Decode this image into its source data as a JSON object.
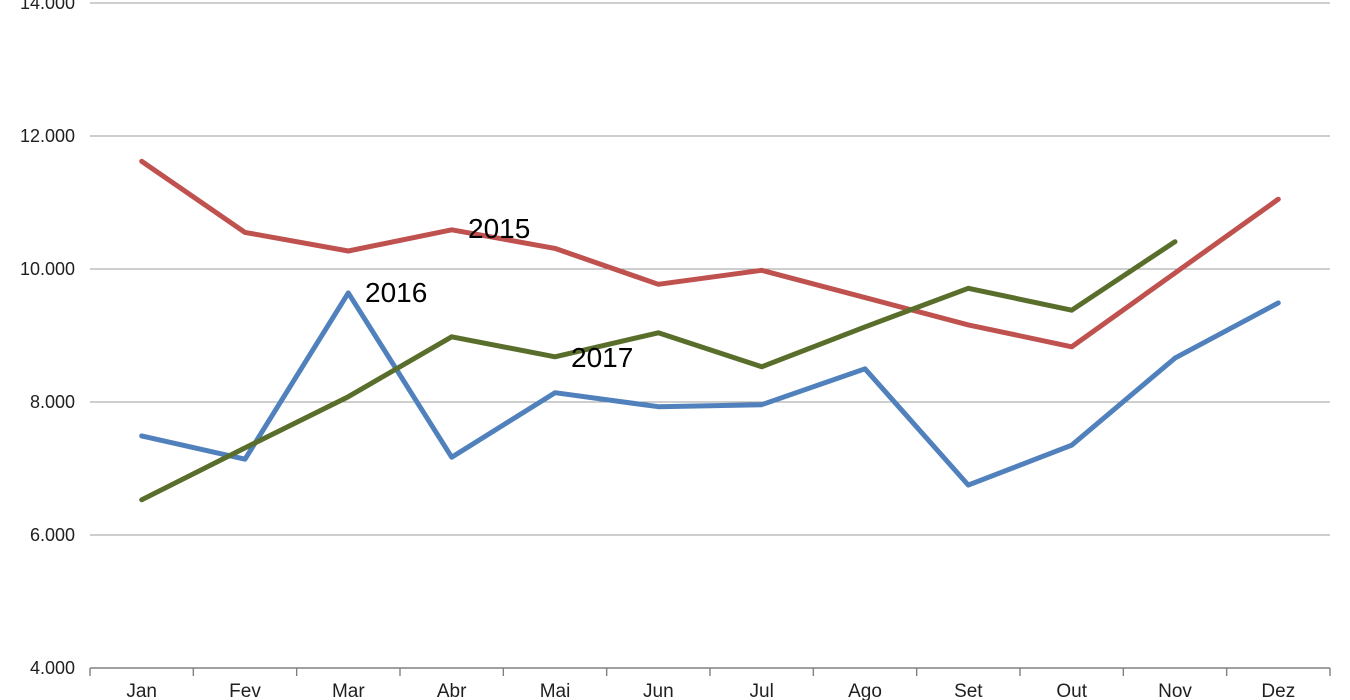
{
  "chart_data": {
    "type": "line",
    "title": "",
    "xlabel": "",
    "ylabel": "",
    "categories": [
      "Jan",
      "Fev",
      "Mar",
      "Abr",
      "Mai",
      "Jun",
      "Jul",
      "Ago",
      "Set",
      "Out",
      "Nov",
      "Dez"
    ],
    "series": [
      {
        "name": "2015",
        "color": "#BF514E",
        "values": [
          11620,
          10550,
          10270,
          10590,
          10310,
          9770,
          9980,
          9570,
          9160,
          8830,
          9940,
          11050
        ]
      },
      {
        "name": "2016",
        "color": "#5181BC",
        "values": [
          7490,
          7140,
          9640,
          7170,
          8140,
          7930,
          7960,
          8500,
          6750,
          7350,
          8660,
          9490
        ]
      },
      {
        "name": "2017",
        "color": "#5A6E2C",
        "values": [
          6530,
          7310,
          8080,
          8980,
          8680,
          9040,
          8530,
          9130,
          9710,
          9380,
          10410,
          null
        ]
      }
    ],
    "y_axis": {
      "min": 4000,
      "max": 14000,
      "tick_interval": 2000,
      "ticks": [
        4000,
        6000,
        8000,
        10000,
        12000,
        14000
      ],
      "tick_labels": [
        "4.000",
        "6.000",
        "8.000",
        "10.000",
        "12.000",
        "14.000"
      ]
    },
    "grid": "horizontal",
    "legend_position": "inline-labels-on-lines",
    "grid_color": "#9d9d9d",
    "axis_color": "#808080"
  }
}
